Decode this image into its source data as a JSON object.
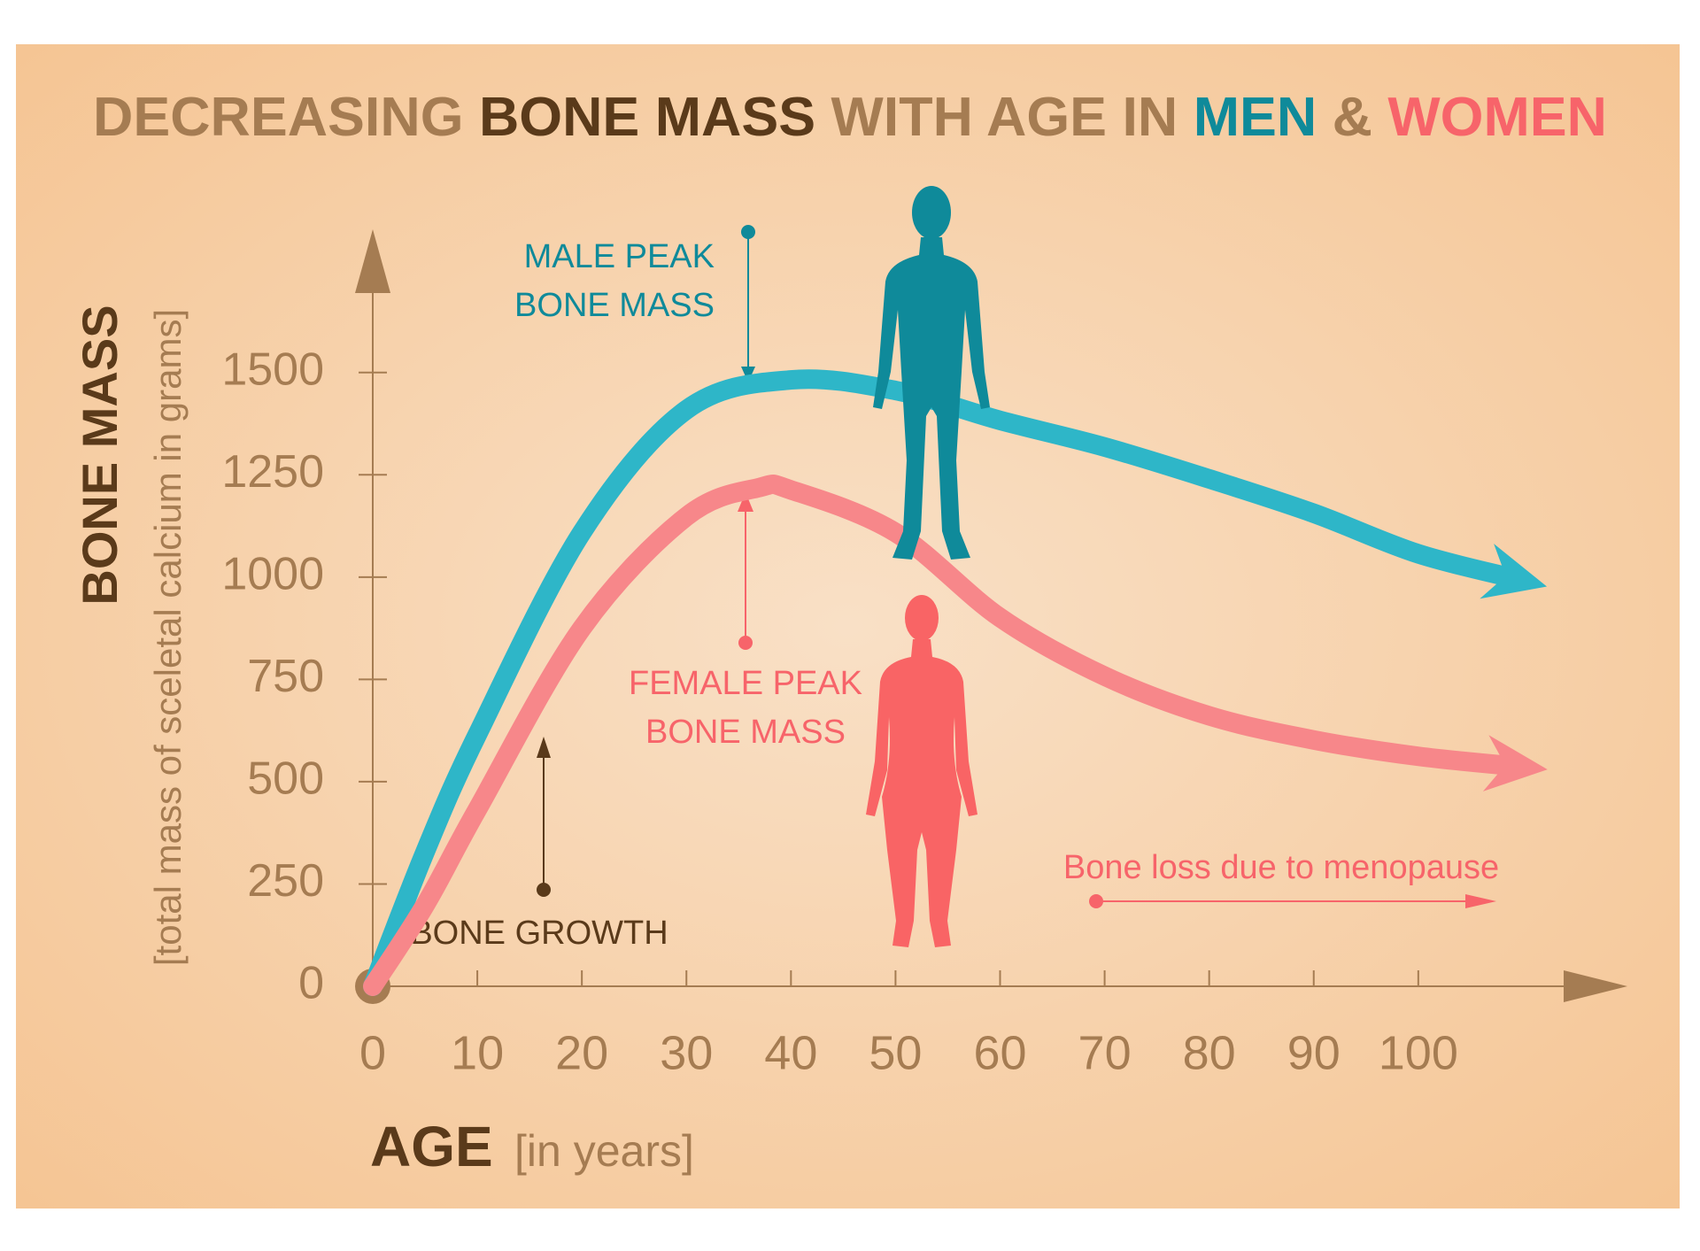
{
  "chart_data": {
    "type": "line",
    "title": [
      "DECREASING",
      "BONE MASS",
      "WITH AGE IN",
      "MEN",
      "&",
      "WOMEN"
    ],
    "title_colors": [
      "#a57c52",
      "#5a3a1a",
      "#a57c52",
      "#0f8a9a",
      "#a57c52",
      "#f7646a"
    ],
    "y_label": "BONE MASS",
    "y_sublabel": "[total mass of sceletal calcium in grams]",
    "x_label": "AGE",
    "x_sublabel": "[in years]",
    "xlim": [
      0,
      120
    ],
    "ylim": [
      0,
      1850
    ],
    "xticks": [
      0,
      10,
      20,
      30,
      40,
      50,
      60,
      70,
      80,
      90,
      100
    ],
    "yticks": [
      0,
      250,
      500,
      750,
      1000,
      1250,
      1500
    ],
    "series": [
      {
        "name": "MEN",
        "color": "#2eb6c8",
        "x": [
          0,
          5,
          10,
          20,
          30,
          40,
          50,
          60,
          70,
          80,
          90,
          100,
          110
        ],
        "values": [
          0,
          328,
          615,
          1109,
          1409,
          1482,
          1456,
          1383,
          1318,
          1240,
          1156,
          1057,
          992
        ]
      },
      {
        "name": "WOMEN",
        "color": "#f7878a",
        "x": [
          0,
          5,
          10,
          20,
          30,
          37,
          40,
          50,
          60,
          70,
          80,
          90,
          100,
          110
        ],
        "values": [
          0,
          198,
          432,
          875,
          1148,
          1219,
          1213,
          1109,
          901,
          758,
          661,
          602,
          562,
          536
        ]
      }
    ],
    "annotations": {
      "male_peak": [
        "MALE PEAK",
        "BONE MASS"
      ],
      "female_peak": [
        "FEMALE PEAK",
        "BONE MASS"
      ],
      "bone_growth": "BONE GROWTH",
      "menopause": "Bone loss due to menopause"
    }
  }
}
